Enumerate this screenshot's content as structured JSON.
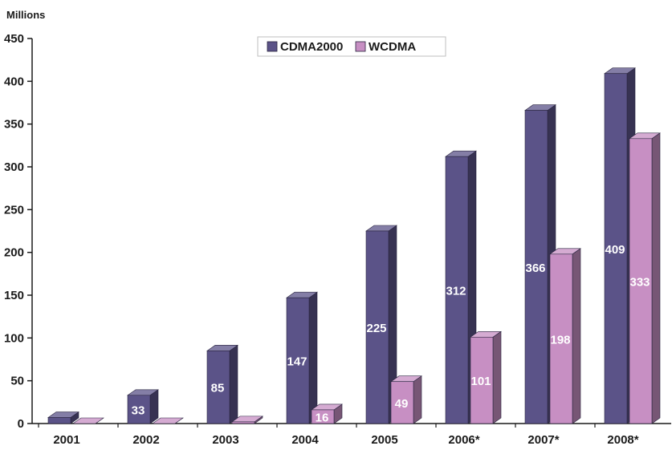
{
  "chart_data": {
    "type": "bar",
    "ylabel": "Millions",
    "ylim": [
      0,
      450
    ],
    "yticks": [
      0,
      50,
      100,
      150,
      200,
      250,
      300,
      350,
      400,
      450
    ],
    "grid": false,
    "legend_position": "top-center",
    "categories": [
      "2001",
      "2002",
      "2003",
      "2004",
      "2005",
      "2006*",
      "2007*",
      "2008*"
    ],
    "series": [
      {
        "name": "CDMA2000",
        "color": "#5b5388",
        "values": [
          7,
          33,
          85,
          147,
          225,
          312,
          366,
          409
        ],
        "labels": [
          "",
          "33",
          "85",
          "147",
          "225",
          "312",
          "366",
          "409"
        ]
      },
      {
        "name": "WCDMA",
        "color": "#c78fc3",
        "values": [
          0,
          0,
          2,
          16,
          49,
          101,
          198,
          333
        ],
        "labels": [
          "",
          "",
          "",
          "16",
          "49",
          "101",
          "198",
          "333"
        ]
      }
    ]
  }
}
